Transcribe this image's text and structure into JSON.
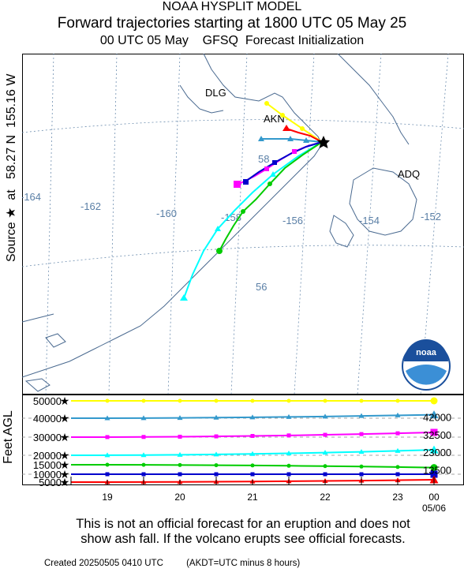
{
  "header": {
    "model": "NOAA HYSPLIT MODEL",
    "title": "Forward trajectories starting at 1800 UTC 05 May 25",
    "init": "00 UTC 05 May    GFSQ  Forecast Initialization"
  },
  "source_label": "Source ★  at   58.27 N  155.16 W",
  "height_axis_label": "Feet AGL",
  "logo_text": "noaa",
  "map": {
    "places": [
      "DLG",
      "AKN",
      "ADQ"
    ],
    "lon_labels": [
      "-164",
      "-162",
      "-160",
      "-158",
      "-156",
      "-154",
      "-152"
    ],
    "lat_labels": [
      "58",
      "56"
    ]
  },
  "chart_data": {
    "type": "line",
    "title": "Forward trajectories starting at 1800 UTC 05 May 25",
    "ylabel": "Feet AGL",
    "y_tick_labels": [
      "50000",
      "40000",
      "30000",
      "20000",
      "15000",
      "10000",
      "5000"
    ],
    "x_tick_labels": [
      "19",
      "20",
      "21",
      "22",
      "23",
      "00",
      "05/06"
    ],
    "end_height_labels": [
      "42000",
      "32500",
      "23000",
      "13500"
    ],
    "grid": true,
    "series": [
      {
        "color": "#ffff00",
        "marker": "circle",
        "start_ft": 50000,
        "end_ft": 50000
      },
      {
        "color": "#3399cc",
        "marker": "triangle",
        "start_ft": 40000,
        "end_ft": 42000
      },
      {
        "color": "#ff00ff",
        "marker": "square",
        "start_ft": 30000,
        "end_ft": 32500
      },
      {
        "color": "#00ffff",
        "marker": "triangle",
        "start_ft": 20000,
        "end_ft": 23000
      },
      {
        "color": "#00cc00",
        "marker": "circle",
        "start_ft": 15000,
        "end_ft": 13500
      },
      {
        "color": "#0000cc",
        "marker": "square",
        "start_ft": 10000,
        "end_ft": 10000
      },
      {
        "color": "#ff0000",
        "marker": "triangle",
        "start_ft": 5000,
        "end_ft": 6500
      }
    ]
  },
  "disclaimer": {
    "line1": "This is not an official forecast for an eruption and does not",
    "line2": "show ash fall. If the volcano erupts see official forecasts."
  },
  "footer": {
    "created": "Created 20250505 0410 UTC",
    "note": "(AKDT=UTC minus 8 hours)"
  }
}
